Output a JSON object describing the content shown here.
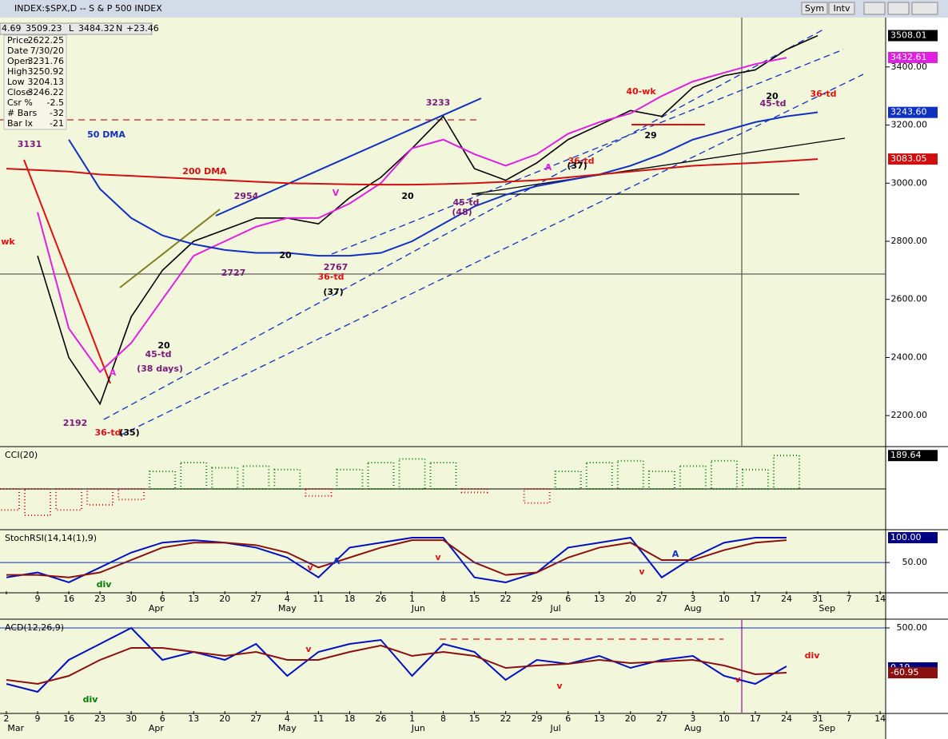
{
  "header": {
    "title": "INDEX:$SPX,D -- S & P 500 INDEX",
    "buttons": [
      "Sym",
      "Intv"
    ],
    "quote_bar": [
      "4.69",
      "3509.23",
      "L",
      "3484.32",
      "N",
      "+23.46"
    ],
    "data_window": [
      [
        "Price",
        "2622.25"
      ],
      [
        "Date",
        "7/30/20"
      ],
      [
        "Open",
        "3231.76"
      ],
      [
        "High",
        "3250.92"
      ],
      [
        "Low",
        "3204.13"
      ],
      [
        "Close",
        "3246.22"
      ],
      [
        "Csr %",
        "-2.5"
      ],
      [
        "# Bars",
        "-32"
      ],
      [
        "Bar Ix",
        "-21"
      ]
    ]
  },
  "chart_data": [
    {
      "type": "line",
      "ylim": [
        2096,
        3570
      ],
      "yticks": [
        {
          "value": 2200,
          "label": "2200.00"
        },
        {
          "value": 2400,
          "label": "2400.00"
        },
        {
          "value": 2600,
          "label": "2600.00"
        },
        {
          "value": 2800,
          "label": "2800.00"
        },
        {
          "value": 3000,
          "label": "3000.00"
        },
        {
          "value": 3200,
          "label": "3200.00"
        },
        {
          "value": 3400,
          "label": "3400.00"
        }
      ],
      "series": [
        {
          "name": "Close",
          "color": "#000000",
          "values": [
            null,
            2750,
            2400,
            2240,
            2540,
            2700,
            2800,
            2840,
            2880,
            2880,
            2860,
            2950,
            3020,
            3120,
            3230,
            3050,
            3010,
            3070,
            3150,
            3200,
            3250,
            3230,
            3330,
            3370,
            3390,
            3460,
            3508,
            null,
            null
          ]
        },
        {
          "name": "EMA",
          "color": "#e020e0",
          "values": [
            null,
            2900,
            2500,
            2350,
            2450,
            2600,
            2750,
            2800,
            2850,
            2880,
            2880,
            2930,
            3000,
            3120,
            3150,
            3100,
            3060,
            3100,
            3170,
            3210,
            3240,
            3300,
            3350,
            3380,
            3410,
            3432,
            null,
            null,
            null
          ]
        },
        {
          "name": "50 DMA",
          "color": "#1030c0",
          "values": [
            null,
            null,
            3150,
            2980,
            2880,
            2820,
            2790,
            2770,
            2760,
            2760,
            2750,
            2750,
            2760,
            2800,
            2860,
            2920,
            2960,
            2990,
            3010,
            3030,
            3060,
            3100,
            3150,
            3180,
            3210,
            3230,
            3244,
            null,
            null
          ]
        },
        {
          "name": "200 DMA",
          "color": "#d01010",
          "values": [
            3050,
            3045,
            3040,
            3030,
            3025,
            3020,
            3015,
            3010,
            3005,
            3000,
            2998,
            2996,
            2995,
            2995,
            2997,
            3000,
            3005,
            3010,
            3020,
            3030,
            3040,
            3050,
            3060,
            3065,
            3070,
            3076,
            3083,
            null,
            null
          ]
        }
      ],
      "price_tags": [
        {
          "value": 3508.01,
          "label": "3508.01",
          "color": "#000000"
        },
        {
          "value": 3432.61,
          "label": "3432.61",
          "color": "#e020e0"
        },
        {
          "value": 3243.6,
          "label": "3243.60",
          "color": "#1030c0"
        },
        {
          "value": 3083.05,
          "label": "3083.05",
          "color": "#d01010"
        }
      ],
      "annotations": [
        {
          "text": "3131",
          "color": "#7a1a7a"
        },
        {
          "text": "2192",
          "color": "#7a1a7a"
        },
        {
          "text": "36-td",
          "color": "#e01010"
        },
        {
          "text": "(35)",
          "color": "#000000"
        },
        {
          "text": "45-td",
          "color": "#7a1a7a"
        },
        {
          "text": "(38 days)",
          "color": "#7a1a7a"
        },
        {
          "text": "20",
          "color": "#000000"
        },
        {
          "text": "2954",
          "color": "#7a1a7a"
        },
        {
          "text": "2727",
          "color": "#7a1a7a"
        },
        {
          "text": "50 DMA",
          "color": "#1030c0"
        },
        {
          "text": "200 DMA",
          "color": "#d01010"
        },
        {
          "text": "20",
          "color": "#000000"
        },
        {
          "text": "2767",
          "color": "#7a1a7a"
        },
        {
          "text": "36-td",
          "color": "#e01010"
        },
        {
          "text": "(37)",
          "color": "#000000"
        },
        {
          "text": "V",
          "color": "#e020e0"
        },
        {
          "text": "20",
          "color": "#000000"
        },
        {
          "text": "3233",
          "color": "#7a1a7a"
        },
        {
          "text": "45-td",
          "color": "#7a1a7a"
        },
        {
          "text": "(48)",
          "color": "#7a1a7a"
        },
        {
          "text": "36-td",
          "color": "#e01010"
        },
        {
          "text": "(37)",
          "color": "#000000"
        },
        {
          "text": "29",
          "color": "#000000"
        },
        {
          "text": "40-wk",
          "color": "#e01010"
        },
        {
          "text": "20",
          "color": "#000000"
        },
        {
          "text": "45-td",
          "color": "#7a1a7a"
        },
        {
          "text": "36-td",
          "color": "#e01010"
        },
        {
          "text": "wk",
          "color": "#e01010"
        },
        {
          "text": "A",
          "color": "#e020e0"
        },
        {
          "text": "A",
          "color": "#e020e0"
        }
      ]
    },
    {
      "type": "bar",
      "title": "CCI(20)",
      "ylim": [
        -227,
        236
      ],
      "pos_color": "#008000",
      "neg_color": "#d01010",
      "values": [
        -120,
        -150,
        -120,
        -90,
        -60,
        100,
        150,
        120,
        130,
        110,
        -40,
        110,
        150,
        170,
        150,
        -20,
        0,
        -80,
        100,
        150,
        160,
        100,
        130,
        160,
        110,
        190,
        null,
        null,
        null
      ],
      "price_tags": [
        {
          "value": 189.64,
          "label": "189.64",
          "color": "#000000"
        }
      ]
    },
    {
      "type": "line",
      "title": "StochRSI(14,14(1),9)",
      "ylim": [
        -11,
        114.5
      ],
      "yticks": [
        {
          "value": 50,
          "label": "50.00"
        }
      ],
      "categories": [
        null,
        "9",
        "16",
        "23",
        "30",
        "6",
        "13",
        "20",
        "27",
        "4",
        "11",
        "18",
        "26",
        "1",
        "8",
        "15",
        "22",
        "29",
        "6",
        "13",
        "20",
        "27",
        "3",
        "10",
        "17",
        "24",
        "31",
        "7",
        "14"
      ],
      "months": [
        "Apr",
        "May",
        "Jun",
        "Jul",
        "Aug",
        "Sep"
      ],
      "series": [
        {
          "name": "StochRSI",
          "color": "#0010c0",
          "values": [
            20,
            30,
            10,
            40,
            70,
            90,
            95,
            90,
            80,
            60,
            20,
            80,
            90,
            100,
            100,
            20,
            10,
            30,
            80,
            90,
            100,
            20,
            60,
            90,
            100,
            100,
            null,
            null,
            null
          ]
        },
        {
          "name": "Signal",
          "color": "#8b1010",
          "values": [
            25,
            25,
            20,
            30,
            55,
            80,
            90,
            90,
            85,
            70,
            40,
            60,
            80,
            95,
            95,
            50,
            25,
            30,
            60,
            80,
            90,
            55,
            55,
            75,
            90,
            95,
            null,
            null,
            null
          ]
        }
      ],
      "price_tags": [
        {
          "value": 100,
          "label": "100.00",
          "color": "#000080"
        }
      ],
      "annotations": [
        {
          "text": "div",
          "color": "#008000"
        },
        {
          "text": "v",
          "color": "#e01010"
        },
        {
          "text": "A",
          "color": "#1030c0"
        },
        {
          "text": "v",
          "color": "#e01010"
        },
        {
          "text": "v",
          "color": "#e01010"
        },
        {
          "text": "A",
          "color": "#1030c0"
        }
      ]
    },
    {
      "type": "line",
      "title": "ACD(12,26,9)",
      "ylim": [
        -570,
        600
      ],
      "yticks": [
        {
          "value": 500,
          "label": "500.00"
        }
      ],
      "categories": [
        "2",
        "9",
        "16",
        "23",
        "30",
        "6",
        "13",
        "20",
        "27",
        "4",
        "11",
        "18",
        "26",
        "1",
        "8",
        "15",
        "22",
        "29",
        "6",
        "13",
        "20",
        "27",
        "3",
        "10",
        "17",
        "24",
        "31",
        "7",
        "14"
      ],
      "months": [
        "Mar",
        "Apr",
        "May",
        "Jun",
        "Jul",
        "Aug",
        "Sep"
      ],
      "series": [
        {
          "name": "MACD",
          "color": "#0010c0",
          "values": [
            -200,
            -300,
            100,
            300,
            500,
            100,
            200,
            100,
            300,
            -100,
            200,
            300,
            350,
            -100,
            300,
            200,
            -150,
            100,
            50,
            150,
            0,
            100,
            150,
            -100,
            -200,
            20,
            null,
            null,
            null
          ]
        },
        {
          "name": "Signal",
          "color": "#8b1010",
          "values": [
            -150,
            -200,
            -100,
            100,
            250,
            250,
            200,
            150,
            200,
            100,
            100,
            200,
            280,
            150,
            200,
            150,
            0,
            30,
            50,
            100,
            60,
            80,
            100,
            30,
            -80,
            -60,
            null,
            null,
            null
          ]
        }
      ],
      "price_tags": [
        {
          "value": 0.19,
          "label": "0.19",
          "color": "#000080"
        },
        {
          "value": -60.95,
          "label": "-60.95",
          "color": "#8b1010"
        }
      ],
      "annotations": [
        {
          "text": "div",
          "color": "#008000"
        },
        {
          "text": "v",
          "color": "#e01010"
        },
        {
          "text": "v",
          "color": "#e01010"
        },
        {
          "text": "v",
          "color": "#e01010"
        },
        {
          "text": "div",
          "color": "#e01010"
        }
      ]
    }
  ]
}
